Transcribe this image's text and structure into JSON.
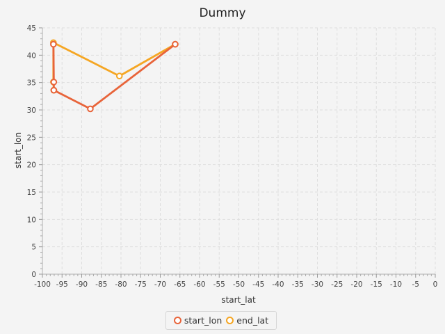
{
  "chart_data": {
    "type": "line",
    "title": "Dummy",
    "xlabel": "start_lat",
    "ylabel": "start_lon",
    "xlim": [
      -100,
      0
    ],
    "ylim": [
      0,
      45
    ],
    "x_ticks": [
      -100,
      -95,
      -90,
      -85,
      -80,
      -75,
      -70,
      -65,
      -60,
      -55,
      -50,
      -45,
      -40,
      -35,
      -30,
      -25,
      -20,
      -15,
      -10,
      -5,
      0
    ],
    "y_ticks": [
      0,
      5,
      10,
      15,
      20,
      25,
      30,
      35,
      40,
      45
    ],
    "grid": true,
    "legend_position": "bottom-center",
    "series": [
      {
        "name": "start_lon",
        "color": "#e8643a",
        "points": [
          [
            -97.2,
            42.0
          ],
          [
            -97.1,
            35.1
          ],
          [
            -97.1,
            33.6
          ],
          [
            -87.8,
            30.2
          ],
          [
            -66.2,
            42.0
          ]
        ]
      },
      {
        "name": "end_lat",
        "color": "#f5a623",
        "points": [
          [
            -97.1,
            33.6
          ],
          [
            -97.2,
            35.1
          ],
          [
            -97.2,
            42.3
          ],
          [
            -80.4,
            36.2
          ],
          [
            -66.2,
            42.0
          ]
        ]
      }
    ]
  }
}
